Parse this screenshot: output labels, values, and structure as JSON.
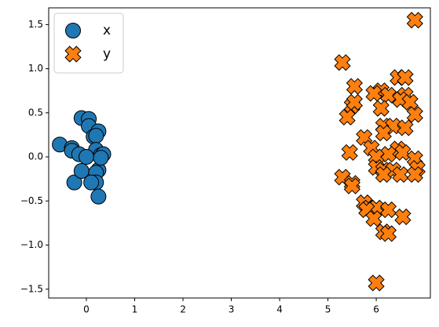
{
  "chart_data": {
    "type": "scatter",
    "xlim": [
      -0.78,
      7.12
    ],
    "ylim": [
      -1.6,
      1.69
    ],
    "xticks": [
      0,
      1,
      2,
      3,
      4,
      5,
      6
    ],
    "yticks": [
      {
        "value": -1.5,
        "label": "−1.5"
      },
      {
        "value": -1.0,
        "label": "−1.0"
      },
      {
        "value": -0.5,
        "label": "−0.5"
      },
      {
        "value": 0.0,
        "label": "0.0"
      },
      0.5,
      {
        "value": 1.0,
        "label": "1.0"
      },
      1.5
    ],
    "legend": "upper left",
    "series": [
      {
        "name": "x",
        "color": "#1f77b4",
        "marker": "o",
        "x": [
          -0.55,
          -0.3,
          -0.3,
          -0.25,
          -0.15,
          -0.1,
          -0.1,
          0.05,
          0.05,
          0.15,
          0.25,
          0.2,
          0.2,
          0.3,
          0.35,
          0.25,
          0.2,
          0.2,
          0.1,
          0.25,
          0.0,
          0.3
        ],
        "values": [
          0.14,
          0.1,
          0.07,
          -0.29,
          0.03,
          0.44,
          -0.16,
          0.43,
          0.35,
          0.23,
          0.29,
          0.24,
          0.08,
          0.02,
          0.03,
          -0.15,
          -0.18,
          -0.29,
          -0.29,
          -0.45,
          0.0,
          -0.01
        ]
      },
      {
        "name": "y",
        "color": "#ff7f0e",
        "marker": "X",
        "x": [
          6.8,
          5.3,
          5.55,
          6.45,
          6.6,
          6.1,
          6.25,
          5.95,
          6.6,
          6.5,
          5.5,
          5.55,
          6.1,
          6.7,
          5.4,
          6.8,
          6.15,
          6.35,
          6.6,
          6.15,
          5.75,
          5.9,
          6.45,
          6.25,
          5.45,
          6.0,
          6.55,
          6.8,
          6.85,
          6.0,
          6.15,
          6.35,
          6.15,
          6.5,
          6.8,
          5.3,
          5.5,
          5.5,
          5.75,
          5.85,
          6.0,
          6.25,
          5.8,
          5.95,
          6.55,
          6.15,
          6.25,
          6.0
        ],
        "values": [
          1.55,
          1.07,
          0.8,
          0.9,
          0.9,
          0.75,
          0.7,
          0.72,
          0.7,
          0.65,
          0.58,
          0.62,
          0.55,
          0.62,
          0.45,
          0.48,
          0.35,
          0.35,
          0.33,
          0.27,
          0.22,
          0.1,
          0.09,
          0.03,
          0.05,
          0.0,
          0.05,
          -0.02,
          -0.13,
          -0.12,
          -0.15,
          -0.15,
          -0.2,
          -0.2,
          -0.2,
          -0.23,
          -0.3,
          -0.33,
          -0.52,
          -0.58,
          -0.58,
          -0.6,
          -0.6,
          -0.7,
          -0.68,
          -0.85,
          -0.87,
          -1.43
        ]
      }
    ]
  }
}
